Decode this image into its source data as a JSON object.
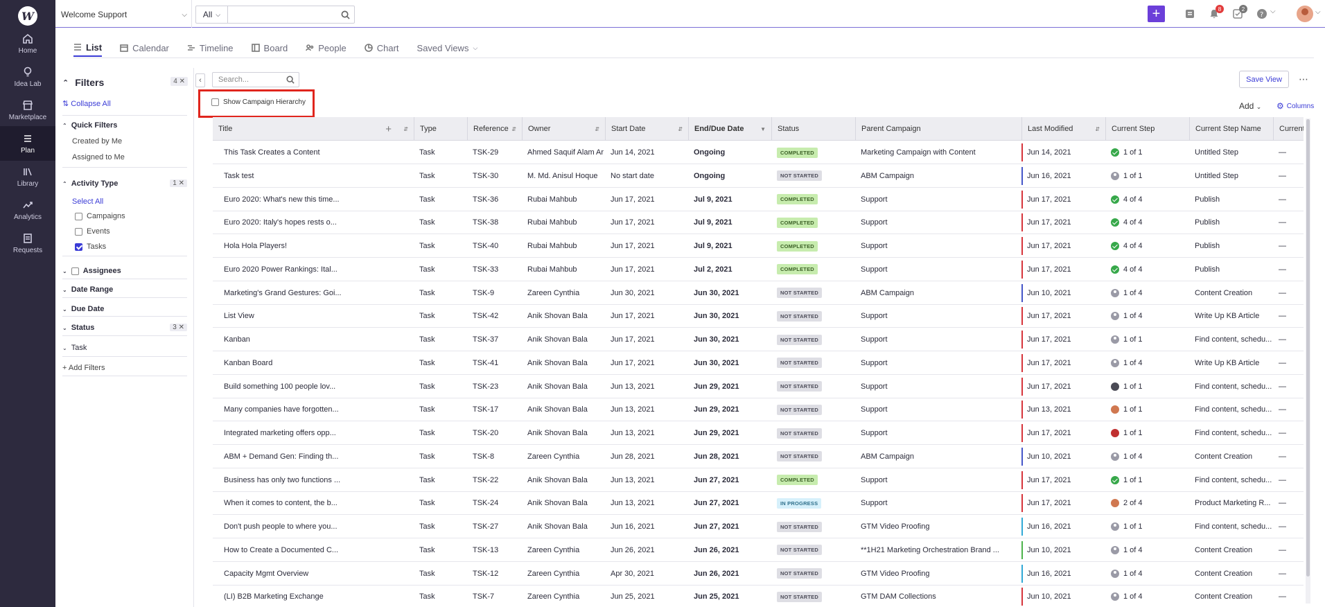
{
  "nav": {
    "logo": "W",
    "items": [
      {
        "label": "Home",
        "icon": "home-icon"
      },
      {
        "label": "Idea Lab",
        "icon": "lightbulb-icon"
      },
      {
        "label": "Marketplace",
        "icon": "store-icon"
      },
      {
        "label": "Plan",
        "icon": "plan-list-icon"
      },
      {
        "label": "Library",
        "icon": "library-icon"
      },
      {
        "label": "Analytics",
        "icon": "analytics-icon"
      },
      {
        "label": "Requests",
        "icon": "requests-icon"
      }
    ],
    "active": "Plan"
  },
  "topbar": {
    "workspace": "Welcome Support",
    "search_scope": "All",
    "search_placeholder": "",
    "notifications_count": "8",
    "tasks_count": "2"
  },
  "tabs": [
    {
      "label": "List",
      "icon": "list-icon",
      "active": true
    },
    {
      "label": "Calendar",
      "icon": "calendar-icon"
    },
    {
      "label": "Timeline",
      "icon": "timeline-icon"
    },
    {
      "label": "Board",
      "icon": "board-icon"
    },
    {
      "label": "People",
      "icon": "people-icon"
    },
    {
      "label": "Chart",
      "icon": "chart-icon"
    },
    {
      "label": "Saved Views",
      "icon": "chevron-down-icon"
    }
  ],
  "filters": {
    "title": "Filters",
    "count": "4 ✕",
    "collapse_all": "Collapse All",
    "quick_filters": "Quick Filters",
    "created_by_me": "Created by Me",
    "assigned_to_me": "Assigned to Me",
    "activity_type": "Activity Type",
    "activity_count": "1 ✕",
    "select_all": "Select All",
    "campaigns": "Campaigns",
    "events": "Events",
    "tasks": "Tasks",
    "assignees": "Assignees",
    "date_range": "Date Range",
    "due_date": "Due Date",
    "status": "Status",
    "status_count": "3 ✕",
    "task": "Task",
    "add_filters": "+ Add Filters"
  },
  "toolbar": {
    "search_placeholder": "Search...",
    "show_hierarchy": "Show Campaign Hierarchy",
    "save_view": "Save View",
    "add": "Add",
    "columns": "Columns"
  },
  "grid": {
    "headers": [
      "Title",
      "Type",
      "Reference",
      "Owner",
      "Start Date",
      "End/Due Date",
      "Status",
      "Parent Campaign",
      "Last Modified",
      "Current Step",
      "Current Step Name",
      "Current"
    ],
    "rows": [
      {
        "title": "This Task Creates a Content",
        "type": "Task",
        "ref": "TSK-29",
        "owner": "Ahmed Saquif Alam Ar",
        "start": "Jun 14, 2021",
        "end": "Ongoing",
        "status": "COMPLETED",
        "parent": "Marketing Campaign with Content",
        "bar": "#d6333a",
        "modified": "Jun 14, 2021",
        "stepicon": "done",
        "step": "1 of 1",
        "stepname": "Untitled Step",
        "cur": "—"
      },
      {
        "title": "Task test",
        "type": "Task",
        "ref": "TSK-30",
        "owner": "M. Md. Anisul Hoque",
        "start": "No start date",
        "end": "Ongoing",
        "status": "NOT STARTED",
        "parent": "ABM Campaign",
        "bar": "#4455c8",
        "modified": "Jun 16, 2021",
        "stepicon": "user",
        "step": "1 of 1",
        "stepname": "Untitled Step",
        "cur": "—"
      },
      {
        "title": "Euro 2020: What's new this time...",
        "type": "Task",
        "ref": "TSK-36",
        "owner": "Rubai Mahbub",
        "start": "Jun 17, 2021",
        "end": "Jul 9, 2021",
        "status": "COMPLETED",
        "parent": "Support",
        "bar": "#d6333a",
        "modified": "Jun 17, 2021",
        "stepicon": "done",
        "step": "4 of 4",
        "stepname": "Publish",
        "cur": "—"
      },
      {
        "title": "Euro 2020: Italy's hopes rests o...",
        "type": "Task",
        "ref": "TSK-38",
        "owner": "Rubai Mahbub",
        "start": "Jun 17, 2021",
        "end": "Jul 9, 2021",
        "status": "COMPLETED",
        "parent": "Support",
        "bar": "#d6333a",
        "modified": "Jun 17, 2021",
        "stepicon": "done",
        "step": "4 of 4",
        "stepname": "Publish",
        "cur": "—"
      },
      {
        "title": "Hola Hola Players!",
        "type": "Task",
        "ref": "TSK-40",
        "owner": "Rubai Mahbub",
        "start": "Jun 17, 2021",
        "end": "Jul 9, 2021",
        "status": "COMPLETED",
        "parent": "Support",
        "bar": "#d6333a",
        "modified": "Jun 17, 2021",
        "stepicon": "done",
        "step": "4 of 4",
        "stepname": "Publish",
        "cur": "—"
      },
      {
        "title": "Euro 2020 Power Rankings: Ital...",
        "type": "Task",
        "ref": "TSK-33",
        "owner": "Rubai Mahbub",
        "start": "Jun 17, 2021",
        "end": "Jul 2, 2021",
        "status": "COMPLETED",
        "parent": "Support",
        "bar": "#d6333a",
        "modified": "Jun 17, 2021",
        "stepicon": "done",
        "step": "4 of 4",
        "stepname": "Publish",
        "cur": "—"
      },
      {
        "title": "Marketing's Grand Gestures: Goi...",
        "type": "Task",
        "ref": "TSK-9",
        "owner": "Zareen Cynthia",
        "start": "Jun 30, 2021",
        "end": "Jun 30, 2021",
        "status": "NOT STARTED",
        "parent": "ABM Campaign",
        "bar": "#4455c8",
        "modified": "Jun 10, 2021",
        "stepicon": "user",
        "step": "1 of 4",
        "stepname": "Content Creation",
        "cur": "—"
      },
      {
        "title": "List View",
        "type": "Task",
        "ref": "TSK-42",
        "owner": "Anik Shovan Bala",
        "start": "Jun 17, 2021",
        "end": "Jun 30, 2021",
        "status": "NOT STARTED",
        "parent": "Support",
        "bar": "#d6333a",
        "modified": "Jun 17, 2021",
        "stepicon": "user",
        "step": "1 of 4",
        "stepname": "Write Up KB Article",
        "cur": "—"
      },
      {
        "title": "Kanban",
        "type": "Task",
        "ref": "TSK-37",
        "owner": "Anik Shovan Bala",
        "start": "Jun 17, 2021",
        "end": "Jun 30, 2021",
        "status": "NOT STARTED",
        "parent": "Support",
        "bar": "#d6333a",
        "modified": "Jun 17, 2021",
        "stepicon": "user",
        "step": "1 of 1",
        "stepname": "Find content, schedu...",
        "cur": "—"
      },
      {
        "title": "Kanban Board",
        "type": "Task",
        "ref": "TSK-41",
        "owner": "Anik Shovan Bala",
        "start": "Jun 17, 2021",
        "end": "Jun 30, 2021",
        "status": "NOT STARTED",
        "parent": "Support",
        "bar": "#d6333a",
        "modified": "Jun 17, 2021",
        "stepicon": "user",
        "step": "1 of 4",
        "stepname": "Write Up KB Article",
        "cur": "—"
      },
      {
        "title": "Build something 100 people lov...",
        "type": "Task",
        "ref": "TSK-23",
        "owner": "Anik Shovan Bala",
        "start": "Jun 13, 2021",
        "end": "Jun 29, 2021",
        "status": "NOT STARTED",
        "parent": "Support",
        "bar": "#d6333a",
        "modified": "Jun 17, 2021",
        "stepicon": "dark",
        "step": "1 of 1",
        "stepname": "Find content, schedu...",
        "cur": "—"
      },
      {
        "title": "Many companies have forgotten...",
        "type": "Task",
        "ref": "TSK-17",
        "owner": "Anik Shovan Bala",
        "start": "Jun 13, 2021",
        "end": "Jun 29, 2021",
        "status": "NOT STARTED",
        "parent": "Support",
        "bar": "#d6333a",
        "modified": "Jun 13, 2021",
        "stepicon": "photo",
        "step": "1 of 1",
        "stepname": "Find content, schedu...",
        "cur": "—"
      },
      {
        "title": "Integrated marketing offers opp...",
        "type": "Task",
        "ref": "TSK-20",
        "owner": "Anik Shovan Bala",
        "start": "Jun 13, 2021",
        "end": "Jun 29, 2021",
        "status": "NOT STARTED",
        "parent": "Support",
        "bar": "#d6333a",
        "modified": "Jun 17, 2021",
        "stepicon": "red",
        "step": "1 of 1",
        "stepname": "Find content, schedu...",
        "cur": "—"
      },
      {
        "title": "ABM + Demand Gen: Finding th...",
        "type": "Task",
        "ref": "TSK-8",
        "owner": "Zareen Cynthia",
        "start": "Jun 28, 2021",
        "end": "Jun 28, 2021",
        "status": "NOT STARTED",
        "parent": "ABM Campaign",
        "bar": "#4455c8",
        "modified": "Jun 10, 2021",
        "stepicon": "user",
        "step": "1 of 4",
        "stepname": "Content Creation",
        "cur": "—"
      },
      {
        "title": "Business has only two functions ...",
        "type": "Task",
        "ref": "TSK-22",
        "owner": "Anik Shovan Bala",
        "start": "Jun 13, 2021",
        "end": "Jun 27, 2021",
        "status": "COMPLETED",
        "parent": "Support",
        "bar": "#d6333a",
        "modified": "Jun 17, 2021",
        "stepicon": "done",
        "step": "1 of 1",
        "stepname": "Find content, schedu...",
        "cur": "—"
      },
      {
        "title": "When it comes to content, the b...",
        "type": "Task",
        "ref": "TSK-24",
        "owner": "Anik Shovan Bala",
        "start": "Jun 13, 2021",
        "end": "Jun 27, 2021",
        "status": "IN PROGRESS",
        "parent": "Support",
        "bar": "#d6333a",
        "modified": "Jun 17, 2021",
        "stepicon": "photo",
        "step": "2 of 4",
        "stepname": "Product Marketing R...",
        "cur": "—"
      },
      {
        "title": "Don't push people to where you...",
        "type": "Task",
        "ref": "TSK-27",
        "owner": "Anik Shovan Bala",
        "start": "Jun 16, 2021",
        "end": "Jun 27, 2021",
        "status": "NOT STARTED",
        "parent": "GTM Video Proofing",
        "bar": "#30a9d6",
        "modified": "Jun 16, 2021",
        "stepicon": "user",
        "step": "1 of 1",
        "stepname": "Find content, schedu...",
        "cur": "—"
      },
      {
        "title": "How to Create a Documented C...",
        "type": "Task",
        "ref": "TSK-13",
        "owner": "Zareen Cynthia",
        "start": "Jun 26, 2021",
        "end": "Jun 26, 2021",
        "status": "NOT STARTED",
        "parent": "**1H21 Marketing Orchestration Brand ...",
        "bar": "#4cb34a",
        "modified": "Jun 10, 2021",
        "stepicon": "user",
        "step": "1 of 4",
        "stepname": "Content Creation",
        "cur": "—"
      },
      {
        "title": "Capacity Mgmt Overview",
        "type": "Task",
        "ref": "TSK-12",
        "owner": "Zareen Cynthia",
        "start": "Apr 30, 2021",
        "end": "Jun 26, 2021",
        "status": "NOT STARTED",
        "parent": "GTM Video Proofing",
        "bar": "#30a9d6",
        "modified": "Jun 16, 2021",
        "stepicon": "user",
        "step": "1 of 4",
        "stepname": "Content Creation",
        "cur": "—"
      },
      {
        "title": "(LI) B2B Marketing Exchange",
        "type": "Task",
        "ref": "TSK-7",
        "owner": "Zareen Cynthia",
        "start": "Jun 25, 2021",
        "end": "Jun 25, 2021",
        "status": "NOT STARTED",
        "parent": "GTM DAM Collections",
        "bar": "#d6333a",
        "modified": "Jun 10, 2021",
        "stepicon": "user",
        "step": "1 of 4",
        "stepname": "Content Creation",
        "cur": "—"
      }
    ]
  }
}
